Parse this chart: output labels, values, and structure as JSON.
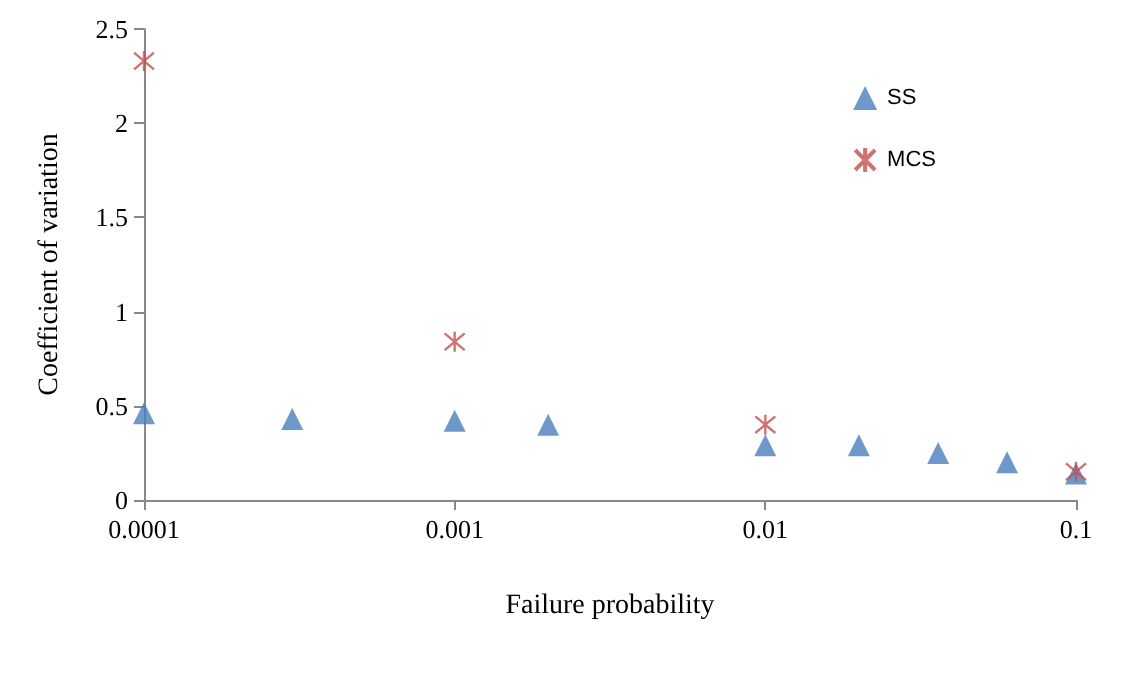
{
  "chart_data": {
    "type": "scatter",
    "xlabel": "Failure probability",
    "ylabel": "Coefficient of variation",
    "log": "x",
    "xlim": [
      0.0001,
      0.1
    ],
    "xticks": [
      0.0001,
      0.001,
      0.01,
      0.1
    ],
    "ylim": [
      0,
      2.5
    ],
    "yticks": [
      0,
      0.5,
      1,
      1.5,
      2,
      2.5
    ],
    "grid": false,
    "legend": "top right",
    "series": [
      {
        "name": "SS",
        "color": "#4a7ebb",
        "marker": "triangle",
        "x": [
          0.0001,
          0.0003,
          0.001,
          0.002,
          0.01,
          0.02,
          0.036,
          0.06,
          0.1
        ],
        "values": [
          0.46,
          0.43,
          0.42,
          0.4,
          0.29,
          0.29,
          0.25,
          0.2,
          0.14
        ]
      },
      {
        "name": "MCS",
        "color": "#c0504d",
        "marker": "cross",
        "x": [
          0.0001,
          0.001,
          0.01,
          0.1
        ],
        "values": [
          2.33,
          0.84,
          0.4,
          0.15
        ]
      }
    ]
  }
}
